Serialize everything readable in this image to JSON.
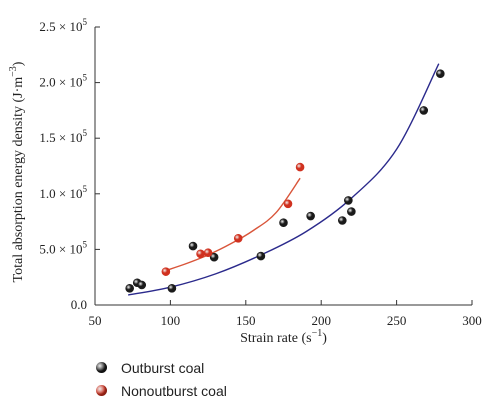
{
  "colors": {
    "outburst_marker": "#1a1a1a",
    "nonoutburst_marker": "#d0311f",
    "outburst_fit": "#2b2a8c",
    "nonoutburst_fit": "#d9553a",
    "axis": "#333333"
  },
  "chart_data": {
    "type": "scatter",
    "xlabel": "Strain rate (s",
    "xlabel_sup": "−1",
    "xlabel_end": ")",
    "ylabel": "Total absorption energy density (J·m",
    "ylabel_sup": "−3",
    "ylabel_end": ")",
    "xlim": [
      50,
      300
    ],
    "ylim": [
      0,
      250000
    ],
    "xticks": [
      50,
      100,
      150,
      200,
      250,
      300
    ],
    "yticks": [
      {
        "value": 0,
        "mant": "0.0",
        "exp": ""
      },
      {
        "value": 50000,
        "mant": "5.0",
        "exp": "5"
      },
      {
        "value": 100000,
        "mant": "1.0",
        "exp": "5"
      },
      {
        "value": 150000,
        "mant": "1.5",
        "exp": "5"
      },
      {
        "value": 200000,
        "mant": "2.0",
        "exp": "5"
      },
      {
        "value": 250000,
        "mant": "2.5",
        "exp": "5"
      }
    ],
    "grid": false,
    "legend_position": "bottom-left, below chart",
    "series": [
      {
        "name": "Outburst coal",
        "color": "#1a1a1a",
        "points": [
          [
            73,
            15000
          ],
          [
            78,
            20000
          ],
          [
            81,
            18000
          ],
          [
            101,
            15000
          ],
          [
            115,
            53000
          ],
          [
            129,
            43000
          ],
          [
            160,
            44000
          ],
          [
            175,
            74000
          ],
          [
            193,
            80000
          ],
          [
            214,
            76000
          ],
          [
            218,
            94000
          ],
          [
            220,
            84000
          ],
          [
            268,
            175000
          ],
          [
            279,
            208000
          ]
        ],
        "fit": {
          "x_range": [
            72,
            278
          ],
          "y_at": [
            [
              72,
              9000
            ],
            [
              100,
              16000
            ],
            [
              130,
              28000
            ],
            [
              160,
              45000
            ],
            [
              190,
              66000
            ],
            [
              220,
              96000
            ],
            [
              250,
              140000
            ],
            [
              278,
              217000
            ]
          ]
        }
      },
      {
        "name": "Nonoutburst coal",
        "color": "#d0311f",
        "points": [
          [
            97,
            30000
          ],
          [
            120,
            46000
          ],
          [
            125,
            47000
          ],
          [
            145,
            60000
          ],
          [
            178,
            91000
          ],
          [
            186,
            124000
          ]
        ],
        "fit": {
          "x_range": [
            97,
            186
          ],
          "y_at": [
            [
              97,
              31000
            ],
            [
              110,
              37000
            ],
            [
              125,
              45000
            ],
            [
              140,
              55000
            ],
            [
              155,
              67000
            ],
            [
              170,
              83000
            ],
            [
              186,
              114000
            ]
          ]
        }
      }
    ]
  },
  "legend": {
    "items": [
      {
        "label": "Outburst coal",
        "color": "#1a1a1a"
      },
      {
        "label": "Nonoutburst coal",
        "color": "#d0311f"
      }
    ]
  }
}
